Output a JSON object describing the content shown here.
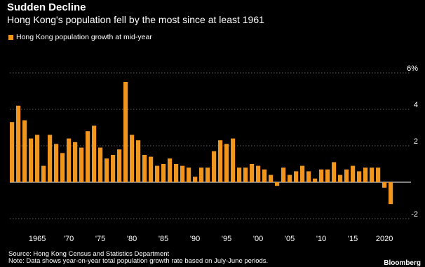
{
  "header": {
    "title": "Sudden Decline",
    "subtitle": "Hong Kong's population fell by the most since at least 1961"
  },
  "footer": {
    "source": "Source: Hong Kong Census and Statistics Department",
    "note": "Note: Data shows year-on-year total population growth rate based on July-June periods.",
    "brand": "Bloomberg"
  },
  "colors": {
    "bar": "#f0961e",
    "background": "#000000",
    "text": "#ffffff",
    "grid": "#ffffff"
  },
  "chart_data": {
    "type": "bar",
    "title": "Sudden Decline",
    "subtitle": "Hong Kong's population fell by the most since at least 1961",
    "xlabel": "",
    "ylabel": "",
    "ylim": [
      -2,
      6
    ],
    "y_ticks": [
      -2,
      0,
      2,
      4,
      6
    ],
    "y_tick_labels": [
      "-2",
      "",
      "2",
      "4",
      "6%"
    ],
    "x_tick_labels": [
      "1965",
      "'70",
      "'75",
      "'80",
      "'85",
      "'90",
      "'95",
      "'00",
      "'05",
      "'10",
      "'15",
      "2020"
    ],
    "x_tick_years": [
      1965,
      1970,
      1975,
      1980,
      1985,
      1990,
      1995,
      2000,
      2005,
      2010,
      2015,
      2020
    ],
    "legend": "top-left",
    "grid": true,
    "categories": [
      1961,
      1962,
      1963,
      1964,
      1965,
      1966,
      1967,
      1968,
      1969,
      1970,
      1971,
      1972,
      1973,
      1974,
      1975,
      1976,
      1977,
      1978,
      1979,
      1980,
      1981,
      1982,
      1983,
      1984,
      1985,
      1986,
      1987,
      1988,
      1989,
      1990,
      1991,
      1992,
      1993,
      1994,
      1995,
      1996,
      1997,
      1998,
      1999,
      2000,
      2001,
      2002,
      2003,
      2004,
      2005,
      2006,
      2007,
      2008,
      2009,
      2010,
      2011,
      2012,
      2013,
      2014,
      2015,
      2016,
      2017,
      2018,
      2019,
      2020,
      2021
    ],
    "series": [
      {
        "name": "Hong Kong population growth at mid-year",
        "values": [
          3.3,
          4.2,
          3.4,
          2.4,
          2.6,
          0.9,
          2.6,
          2.1,
          1.6,
          2.4,
          2.2,
          1.9,
          2.8,
          3.1,
          1.9,
          1.3,
          1.5,
          1.8,
          5.5,
          2.6,
          2.3,
          1.5,
          1.4,
          0.9,
          1.0,
          1.3,
          1.0,
          0.9,
          0.8,
          0.3,
          0.8,
          0.8,
          1.7,
          2.3,
          2.1,
          2.4,
          0.8,
          0.8,
          1.0,
          0.9,
          0.7,
          0.4,
          -0.2,
          0.8,
          0.4,
          0.6,
          0.9,
          0.6,
          0.2,
          0.7,
          0.7,
          1.1,
          0.4,
          0.7,
          0.9,
          0.6,
          0.8,
          0.8,
          0.8,
          -0.3,
          -1.2
        ]
      }
    ]
  }
}
